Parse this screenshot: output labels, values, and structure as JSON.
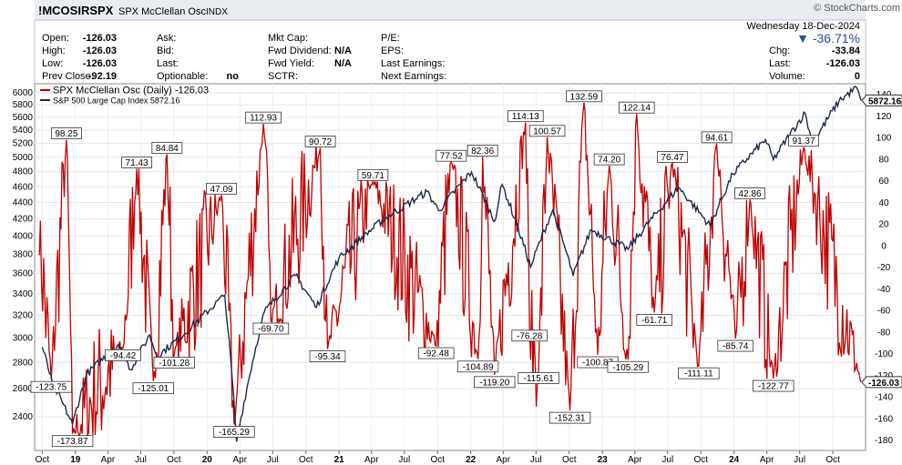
{
  "header": {
    "symbol": "!MCOSIRSPX",
    "name": "SPX McClellan Osc",
    "exchange": "INDX",
    "brand": "© StockCharts.com",
    "date": "Wednesday 18-Dec-2024",
    "pct_change": "▼ -36.71%",
    "col1": [
      {
        "label": "Open:",
        "value": "-126.03"
      },
      {
        "label": "High:",
        "value": "-126.03"
      },
      {
        "label": "Low:",
        "value": "-126.03"
      },
      {
        "label": "Prev Close:",
        "value": "-92.19"
      }
    ],
    "col2": [
      {
        "label": "Ask:",
        "value": ""
      },
      {
        "label": "Bid:",
        "value": ""
      },
      {
        "label": "Last:",
        "value": ""
      },
      {
        "label": "Optionable:",
        "value": "no"
      }
    ],
    "col3": [
      {
        "label": "Mkt Cap:",
        "value": ""
      },
      {
        "label": "Fwd Dividend:",
        "value": "N/A"
      },
      {
        "label": "Fwd Yield:",
        "value": "N/A"
      },
      {
        "label": "SCTR:",
        "value": ""
      }
    ],
    "col4": [
      {
        "label": "P/E:",
        "value": ""
      },
      {
        "label": "EPS:",
        "value": ""
      },
      {
        "label": "Last Earnings:",
        "value": ""
      },
      {
        "label": "Next Earnings:",
        "value": ""
      }
    ],
    "col5": [
      {
        "label": "Chg:",
        "value": "-33.84"
      },
      {
        "label": "Last:",
        "value": "-126.03"
      },
      {
        "label": "Volume:",
        "value": "0"
      }
    ]
  },
  "legend": [
    {
      "text": "SPX McClellan Osc (Daily) -126.03",
      "color": "#c00000"
    },
    {
      "text": "S&P 500 Large Cap Index 5872.16",
      "color": "#1b2a4a"
    }
  ],
  "chart_data": {
    "type": "line",
    "x_ticks": [
      "Oct",
      "19",
      "Apr",
      "Jul",
      "Oct",
      "20",
      "Apr",
      "Jul",
      "Oct",
      "21",
      "Apr",
      "Jul",
      "Oct",
      "22",
      "Apr",
      "Jul",
      "Oct",
      "23",
      "Apr",
      "Jul",
      "Oct",
      "24",
      "Apr",
      "Jul",
      "Oct"
    ],
    "left_axis": {
      "ticks": [
        "6000",
        "5800",
        "5600",
        "5400",
        "5200",
        "5000",
        "4800",
        "4600",
        "4400",
        "4200",
        "4000",
        "3800",
        "3600",
        "3400",
        "3200",
        "3000",
        "2800",
        "2600",
        "2400"
      ],
      "ylim": [
        2200,
        6000
      ]
    },
    "right_axis": {
      "ticks": [
        "140",
        "120",
        "100",
        "80",
        "60",
        "40",
        "20",
        "0",
        "-20",
        "-40",
        "-60",
        "-80",
        "-100",
        "-120",
        "-140",
        "-160",
        "-180"
      ],
      "ylim": [
        -180,
        140
      ]
    },
    "last_values": {
      "spx": "5872.16",
      "osc": "-126.03"
    },
    "spx_points": [
      [
        "2018-10-01",
        2924
      ],
      [
        "2018-10-29",
        2640
      ],
      [
        "2018-12-24",
        2351
      ],
      [
        "2019-02-01",
        2706
      ],
      [
        "2019-04-30",
        2945
      ],
      [
        "2019-06-03",
        2744
      ],
      [
        "2019-07-26",
        3025
      ],
      [
        "2019-08-15",
        2847
      ],
      [
        "2019-10-31",
        3037
      ],
      [
        "2020-02-19",
        3386
      ],
      [
        "2020-03-23",
        2237
      ],
      [
        "2020-06-08",
        3232
      ],
      [
        "2020-09-02",
        3580
      ],
      [
        "2020-10-30",
        3270
      ],
      [
        "2020-12-31",
        3756
      ],
      [
        "2021-04-30",
        4181
      ],
      [
        "2021-09-02",
        4537
      ],
      [
        "2021-10-04",
        4300
      ],
      [
        "2022-01-03",
        4796
      ],
      [
        "2022-03-08",
        4170
      ],
      [
        "2022-03-29",
        4631
      ],
      [
        "2022-06-16",
        3666
      ],
      [
        "2022-08-16",
        4305
      ],
      [
        "2022-10-12",
        3577
      ],
      [
        "2022-12-01",
        4076
      ],
      [
        "2023-03-13",
        3855
      ],
      [
        "2023-07-31",
        4589
      ],
      [
        "2023-10-27",
        4117
      ],
      [
        "2023-12-29",
        4770
      ],
      [
        "2024-03-28",
        5254
      ],
      [
        "2024-04-19",
        4967
      ],
      [
        "2024-07-16",
        5667
      ],
      [
        "2024-08-05",
        5186
      ],
      [
        "2024-10-18",
        5864
      ],
      [
        "2024-12-06",
        6090
      ],
      [
        "2024-12-18",
        5872
      ]
    ],
    "osc_annotations": [
      {
        "date": "2018-10-26",
        "value": -123.75
      },
      {
        "date": "2018-12-07",
        "value": 98.25
      },
      {
        "date": "2018-12-24",
        "value": -173.87
      },
      {
        "date": "2019-05-13",
        "value": -94.42
      },
      {
        "date": "2019-06-20",
        "value": 71.43
      },
      {
        "date": "2019-08-05",
        "value": -125.01
      },
      {
        "date": "2019-09-12",
        "value": 84.84
      },
      {
        "date": "2019-10-02",
        "value": -101.28
      },
      {
        "date": "2020-02-10",
        "value": 47.09
      },
      {
        "date": "2020-03-16",
        "value": -165.29
      },
      {
        "date": "2020-06-05",
        "value": 112.93
      },
      {
        "date": "2020-06-26",
        "value": -69.7
      },
      {
        "date": "2020-11-10",
        "value": 90.72
      },
      {
        "date": "2020-11-30",
        "value": -95.34
      },
      {
        "date": "2021-04-05",
        "value": 59.71
      },
      {
        "date": "2021-09-27",
        "value": -92.48
      },
      {
        "date": "2021-11-08",
        "value": 77.52
      },
      {
        "date": "2022-01-21",
        "value": -104.89
      },
      {
        "date": "2022-02-03",
        "value": 82.36
      },
      {
        "date": "2022-03-08",
        "value": -119.2
      },
      {
        "date": "2022-06-02",
        "value": 114.13
      },
      {
        "date": "2022-06-13",
        "value": -76.28
      },
      {
        "date": "2022-07-08",
        "value": -115.61
      },
      {
        "date": "2022-08-01",
        "value": 100.57
      },
      {
        "date": "2022-10-03",
        "value": -152.31
      },
      {
        "date": "2022-11-11",
        "value": 132.59
      },
      {
        "date": "2022-12-19",
        "value": -100.87
      },
      {
        "date": "2023-01-20",
        "value": 74.2
      },
      {
        "date": "2023-03-13",
        "value": -105.29
      },
      {
        "date": "2023-04-06",
        "value": 122.14
      },
      {
        "date": "2023-05-25",
        "value": -61.71
      },
      {
        "date": "2023-07-14",
        "value": 76.47
      },
      {
        "date": "2023-09-25",
        "value": -111.11
      },
      {
        "date": "2023-11-14",
        "value": 94.61
      },
      {
        "date": "2024-01-05",
        "value": -85.74
      },
      {
        "date": "2024-02-14",
        "value": 42.86
      },
      {
        "date": "2024-04-19",
        "value": -122.77
      },
      {
        "date": "2024-07-12",
        "value": 91.37
      },
      {
        "date": "2024-12-18",
        "value": -126.03
      }
    ]
  }
}
